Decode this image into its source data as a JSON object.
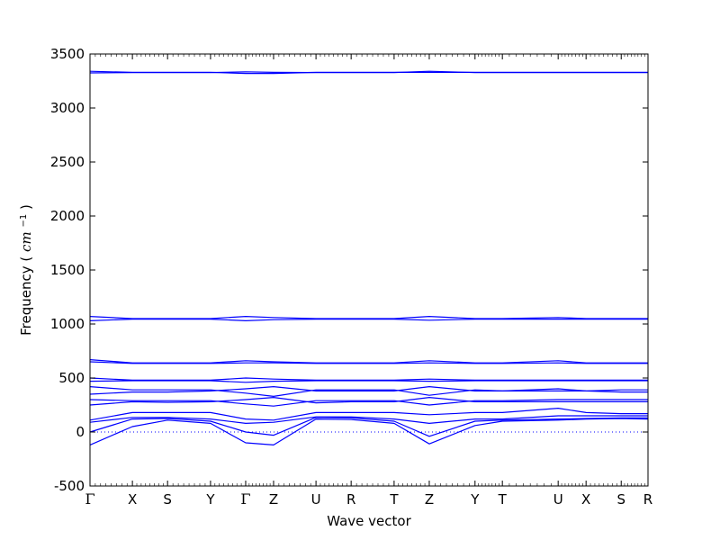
{
  "chart_data": {
    "type": "line",
    "title": "",
    "xlabel": "Wave vector",
    "ylabel": "Frequency",
    "ylabel_unit_base": "cm",
    "ylabel_unit_exp": "−1",
    "ylim": [
      -500,
      3500
    ],
    "yticks": [
      -500,
      0,
      500,
      1000,
      1500,
      2000,
      2500,
      3000,
      3500
    ],
    "grid": false,
    "legend": "none",
    "line_color": "#0000ff",
    "zero_line": {
      "y": 0,
      "style": "dotted",
      "color": "#0000ff"
    },
    "xlim": [
      0,
      1
    ],
    "high_symmetry_points": [
      {
        "label": "Γ",
        "x": 0.0
      },
      {
        "label": "X",
        "x": 0.076
      },
      {
        "label": "S",
        "x": 0.139
      },
      {
        "label": "Y",
        "x": 0.216
      },
      {
        "label": "Γ",
        "x": 0.279
      },
      {
        "label": "Z",
        "x": 0.329
      },
      {
        "label": "U",
        "x": 0.405
      },
      {
        "label": "R",
        "x": 0.468
      },
      {
        "label": "T",
        "x": 0.545
      },
      {
        "label": "Z",
        "x": 0.608
      },
      {
        "label": "Y",
        "x": 0.69
      },
      {
        "label": "T",
        "x": 0.739
      },
      {
        "label": "U",
        "x": 0.839
      },
      {
        "label": "X",
        "x": 0.889
      },
      {
        "label": "S",
        "x": 0.952
      },
      {
        "label": "R",
        "x": 1.0
      }
    ],
    "series": [
      {
        "x": [
          0,
          0.076,
          0.139,
          0.216,
          0.279,
          0.329,
          0.405,
          0.468,
          0.545,
          0.608,
          0.69,
          0.739,
          0.839,
          0.889,
          0.952,
          1.0
        ],
        "y": [
          -120,
          50,
          110,
          80,
          -100,
          -120,
          120,
          115,
          80,
          -110,
          60,
          100,
          110,
          120,
          125,
          120
        ]
      },
      {
        "x": [
          0,
          0.076,
          0.139,
          0.216,
          0.279,
          0.329,
          0.405,
          0.468,
          0.545,
          0.608,
          0.69,
          0.739,
          0.839,
          0.889,
          0.952,
          1.0
        ],
        "y": [
          0,
          120,
          125,
          100,
          0,
          -30,
          135,
          130,
          100,
          -40,
          100,
          110,
          120,
          125,
          130,
          130
        ]
      },
      {
        "x": [
          0,
          0.076,
          0.139,
          0.216,
          0.279,
          0.329,
          0.405,
          0.468,
          0.545,
          0.608,
          0.69,
          0.739,
          0.839,
          0.889,
          0.952,
          1.0
        ],
        "y": [
          90,
          135,
          135,
          120,
          80,
          90,
          140,
          140,
          120,
          80,
          120,
          120,
          150,
          150,
          150,
          150
        ]
      },
      {
        "x": [
          0,
          0.076,
          0.139,
          0.216,
          0.279,
          0.329,
          0.405,
          0.468,
          0.545,
          0.608,
          0.69,
          0.739,
          0.839,
          0.889,
          0.952,
          1.0
        ],
        "y": [
          110,
          180,
          180,
          180,
          120,
          110,
          180,
          180,
          180,
          160,
          180,
          180,
          220,
          180,
          170,
          170
        ]
      },
      {
        "x": [
          0,
          0.076,
          0.139,
          0.216,
          0.279,
          0.329,
          0.405,
          0.468,
          0.545,
          0.608,
          0.69,
          0.739,
          0.839,
          0.889,
          0.952,
          1.0
        ],
        "y": [
          250,
          280,
          275,
          280,
          300,
          320,
          270,
          280,
          280,
          320,
          280,
          280,
          280,
          280,
          280,
          280
        ]
      },
      {
        "x": [
          0,
          0.076,
          0.139,
          0.216,
          0.279,
          0.329,
          0.405,
          0.468,
          0.545,
          0.608,
          0.69,
          0.739,
          0.839,
          0.889,
          0.952,
          1.0
        ],
        "y": [
          300,
          290,
          290,
          290,
          260,
          240,
          290,
          290,
          290,
          250,
          290,
          290,
          300,
          300,
          300,
          300
        ]
      },
      {
        "x": [
          0,
          0.076,
          0.139,
          0.216,
          0.279,
          0.329,
          0.405,
          0.468,
          0.545,
          0.608,
          0.69,
          0.739,
          0.839,
          0.889,
          0.952,
          1.0
        ],
        "y": [
          350,
          370,
          370,
          380,
          400,
          420,
          380,
          380,
          380,
          420,
          380,
          380,
          400,
          380,
          370,
          370
        ]
      },
      {
        "x": [
          0,
          0.076,
          0.139,
          0.216,
          0.279,
          0.329,
          0.405,
          0.468,
          0.545,
          0.608,
          0.69,
          0.739,
          0.839,
          0.889,
          0.952,
          1.0
        ],
        "y": [
          420,
          390,
          390,
          390,
          360,
          330,
          390,
          390,
          390,
          340,
          390,
          380,
          380,
          380,
          390,
          390
        ]
      },
      {
        "x": [
          0,
          0.076,
          0.139,
          0.216,
          0.279,
          0.329,
          0.405,
          0.468,
          0.545,
          0.608,
          0.69,
          0.739,
          0.839,
          0.889,
          0.952,
          1.0
        ],
        "y": [
          500,
          480,
          480,
          480,
          500,
          490,
          480,
          480,
          480,
          490,
          480,
          480,
          480,
          480,
          480,
          480
        ]
      },
      {
        "x": [
          0,
          0.076,
          0.139,
          0.216,
          0.279,
          0.329,
          0.405,
          0.468,
          0.545,
          0.608,
          0.69,
          0.739,
          0.839,
          0.889,
          0.952,
          1.0
        ],
        "y": [
          470,
          475,
          475,
          475,
          460,
          470,
          475,
          475,
          475,
          470,
          475,
          475,
          475,
          475,
          475,
          475
        ]
      },
      {
        "x": [
          0,
          0.076,
          0.139,
          0.216,
          0.279,
          0.329,
          0.405,
          0.468,
          0.545,
          0.608,
          0.69,
          0.739,
          0.839,
          0.889,
          0.952,
          1.0
        ],
        "y": [
          670,
          640,
          640,
          640,
          660,
          650,
          640,
          640,
          640,
          660,
          640,
          640,
          660,
          640,
          640,
          640
        ]
      },
      {
        "x": [
          0,
          0.076,
          0.139,
          0.216,
          0.279,
          0.329,
          0.405,
          0.468,
          0.545,
          0.608,
          0.69,
          0.739,
          0.839,
          0.889,
          0.952,
          1.0
        ],
        "y": [
          650,
          635,
          635,
          635,
          640,
          640,
          635,
          635,
          635,
          640,
          635,
          635,
          640,
          635,
          635,
          635
        ]
      },
      {
        "x": [
          0,
          0.076,
          0.139,
          0.216,
          0.279,
          0.329,
          0.405,
          0.468,
          0.545,
          0.608,
          0.69,
          0.739,
          0.839,
          0.889,
          0.952,
          1.0
        ],
        "y": [
          1070,
          1050,
          1050,
          1050,
          1070,
          1060,
          1050,
          1050,
          1050,
          1070,
          1050,
          1050,
          1060,
          1050,
          1050,
          1050
        ]
      },
      {
        "x": [
          0,
          0.076,
          0.139,
          0.216,
          0.279,
          0.329,
          0.405,
          0.468,
          0.545,
          0.608,
          0.69,
          0.739,
          0.839,
          0.889,
          0.952,
          1.0
        ],
        "y": [
          1030,
          1045,
          1045,
          1045,
          1030,
          1040,
          1045,
          1045,
          1045,
          1035,
          1045,
          1045,
          1045,
          1045,
          1045,
          1045
        ]
      },
      {
        "x": [
          0,
          0.076,
          0.139,
          0.216,
          0.279,
          0.329,
          0.405,
          0.468,
          0.545,
          0.608,
          0.69,
          0.739,
          0.839,
          0.889,
          0.952,
          1.0
        ],
        "y": [
          3340,
          3330,
          3330,
          3330,
          3320,
          3320,
          3330,
          3330,
          3330,
          3330,
          3330,
          3330,
          3330,
          3330,
          3330,
          3330
        ]
      },
      {
        "x": [
          0,
          0.076,
          0.139,
          0.216,
          0.279,
          0.329,
          0.405,
          0.468,
          0.545,
          0.608,
          0.69,
          0.739,
          0.839,
          0.889,
          0.952,
          1.0
        ],
        "y": [
          3325,
          3328,
          3328,
          3328,
          3335,
          3330,
          3328,
          3328,
          3328,
          3340,
          3328,
          3328,
          3328,
          3328,
          3328,
          3328
        ]
      }
    ]
  }
}
